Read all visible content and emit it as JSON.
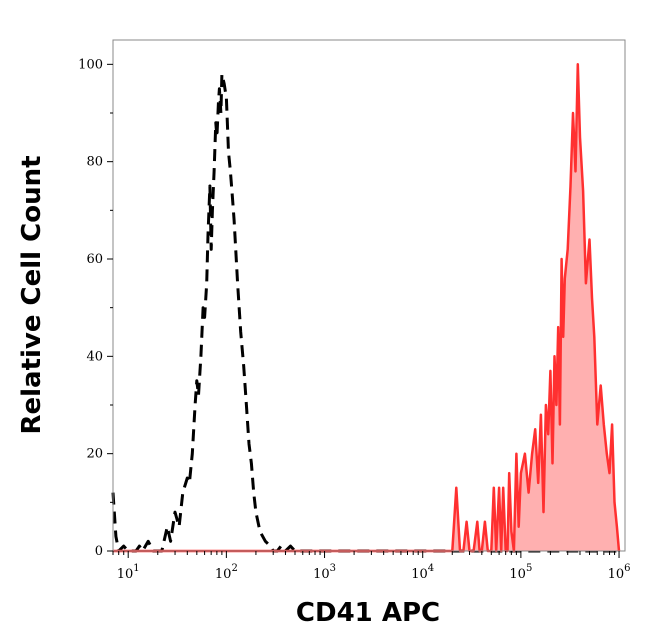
{
  "chart_data": {
    "type": "area",
    "title": "",
    "xlabel": "CD41 APC",
    "ylabel": "Relative Cell Count",
    "x_scale": "log",
    "xlim": [
      7,
      1150000
    ],
    "ylim": [
      0,
      105
    ],
    "y_ticks": [
      0,
      20,
      40,
      60,
      80,
      100
    ],
    "x_ticks": [
      {
        "base": "10",
        "exp": "1",
        "value": 10
      },
      {
        "base": "10",
        "exp": "2",
        "value": 100
      },
      {
        "base": "10",
        "exp": "3",
        "value": 1000
      },
      {
        "base": "10",
        "exp": "4",
        "value": 10000
      },
      {
        "base": "10",
        "exp": "5",
        "value": 100000
      },
      {
        "base": "10",
        "exp": "6",
        "value": 1000000
      }
    ],
    "grid": false,
    "legend": "none",
    "series": [
      {
        "style": "dashed-line",
        "color": "#000000",
        "fill": "none",
        "x": [
          7,
          7.5,
          8,
          9,
          10,
          12,
          13,
          14,
          16,
          18,
          20,
          22,
          25,
          27,
          30,
          33,
          36,
          40,
          42,
          45,
          48,
          50,
          52,
          55,
          58,
          60,
          63,
          65,
          68,
          70,
          72,
          75,
          78,
          80,
          83,
          85,
          88,
          90,
          95,
          100,
          105,
          110,
          115,
          120,
          130,
          140,
          150,
          160,
          170,
          180,
          190,
          200,
          220,
          250,
          280,
          300,
          330,
          360,
          400,
          450,
          500,
          1000,
          10000,
          100000,
          1000000
        ],
        "y": [
          12,
          3,
          0,
          1,
          0,
          0,
          1,
          0,
          2,
          0,
          0,
          0,
          5,
          2,
          8,
          5,
          12,
          15,
          14,
          20,
          30,
          35,
          32,
          40,
          50,
          48,
          55,
          65,
          75,
          62,
          70,
          78,
          88,
          85,
          92,
          95,
          90,
          98,
          96,
          93,
          82,
          78,
          73,
          68,
          55,
          45,
          38,
          30,
          22,
          18,
          12,
          8,
          4,
          2,
          1,
          0,
          0,
          1,
          0,
          1,
          0,
          0,
          0,
          0,
          0
        ]
      },
      {
        "style": "solid-line-filled",
        "color": "#ff3030",
        "fill": "#ffb0b0",
        "x": [
          7,
          1000,
          10000,
          18000,
          20000,
          22000,
          24000,
          26000,
          28000,
          30000,
          33000,
          36000,
          38000,
          40000,
          43000,
          46000,
          50000,
          53000,
          56000,
          60000,
          63000,
          66000,
          70000,
          73000,
          76000,
          80000,
          85000,
          90000,
          95000,
          100000,
          110000,
          120000,
          130000,
          140000,
          150000,
          160000,
          170000,
          180000,
          190000,
          200000,
          210000,
          220000,
          230000,
          240000,
          250000,
          260000,
          270000,
          280000,
          300000,
          320000,
          340000,
          360000,
          380000,
          400000,
          430000,
          460000,
          500000,
          530000,
          560000,
          600000,
          650000,
          700000,
          750000,
          800000,
          850000,
          900000,
          950000,
          1000000
        ],
        "y": [
          0,
          0,
          0,
          0,
          0,
          13,
          0,
          0,
          6,
          0,
          0,
          6,
          0,
          0,
          6,
          0,
          0,
          13,
          0,
          13,
          0,
          13,
          0,
          0,
          16,
          4,
          0,
          20,
          5,
          16,
          20,
          12,
          20,
          25,
          14,
          28,
          8,
          30,
          24,
          37,
          18,
          40,
          30,
          46,
          26,
          60,
          44,
          56,
          62,
          75,
          90,
          78,
          100,
          85,
          74,
          55,
          64,
          52,
          44,
          26,
          34,
          26,
          20,
          16,
          26,
          10,
          5,
          0
        ]
      }
    ]
  }
}
